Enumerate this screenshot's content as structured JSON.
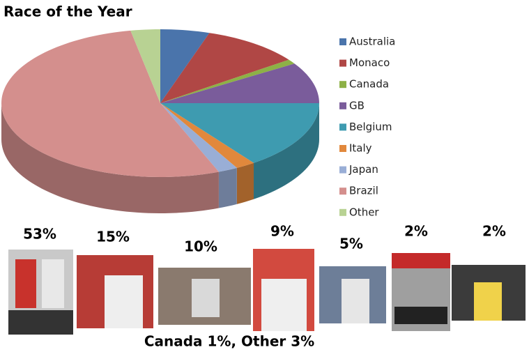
{
  "chart_data": {
    "type": "pie3d",
    "title": "Race of the Year",
    "categories": [
      "Australia",
      "Monaco",
      "Canada",
      "GB",
      "Belgium",
      "Italy",
      "Japan",
      "Brazil",
      "Other"
    ],
    "values": [
      5,
      10,
      1,
      9,
      15,
      2,
      2,
      53,
      3
    ],
    "colors": [
      "#4a74ab",
      "#b04745",
      "#8db146",
      "#7a5c9b",
      "#3e9bb0",
      "#e1883c",
      "#99aed6",
      "#d48f8d",
      "#b8d293"
    ],
    "legend": "right"
  },
  "photos": [
    {
      "label": "53%"
    },
    {
      "label": "15%"
    },
    {
      "label": "10%"
    },
    {
      "label": "9%"
    },
    {
      "label": "5%"
    },
    {
      "label": "2%"
    },
    {
      "label": "2%"
    }
  ],
  "footer": "Canada 1%, Other 3%"
}
